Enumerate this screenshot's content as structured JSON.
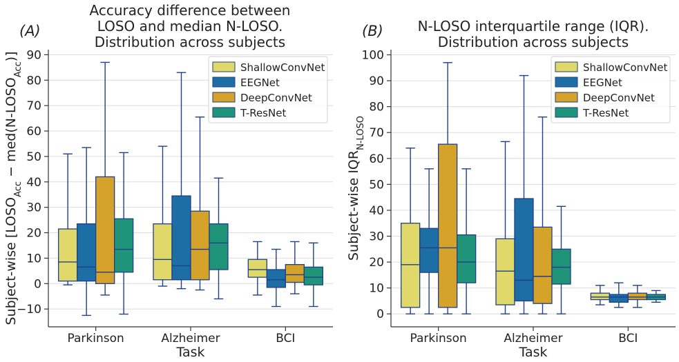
{
  "chart_data": [
    {
      "type": "box",
      "panel_label": "(A)",
      "title": [
        "Accuracy difference between",
        "LOSO and median N-LOSO.",
        "Distribution across subjects"
      ],
      "xlabel": "Task",
      "ylabel": {
        "parts": [
          {
            "t": "Subject-wise [LOSO"
          },
          {
            "t": "Acc",
            "sub": true
          },
          {
            "t": " − med(N-LOSO"
          },
          {
            "t": "Acc",
            "sub": true
          },
          {
            "t": ")]"
          }
        ]
      },
      "ylim": [
        -17,
        92
      ],
      "yticks": [
        -10,
        0,
        10,
        20,
        30,
        40,
        50,
        60,
        70,
        80,
        90
      ],
      "ytick_labels": [
        "−10",
        "0",
        "10",
        "20",
        "30",
        "40",
        "50",
        "60",
        "70",
        "80",
        "90"
      ],
      "categories": [
        "Parkinson",
        "Alzheimer",
        "BCI"
      ],
      "series": [
        {
          "name": "ShallowConvNet",
          "color": "#e0d96a",
          "boxes": [
            [
              -0.5,
              1,
              8.5,
              21.5,
              51
            ],
            [
              -1,
              1.5,
              9.5,
              23.5,
              54
            ],
            [
              -4.5,
              2.5,
              5.5,
              9.5,
              16.5
            ]
          ]
        },
        {
          "name": "EEGNet",
          "color": "#1c6ea4",
          "boxes": [
            [
              -12.5,
              1,
              6.5,
              23.5,
              53.5
            ],
            [
              -2,
              1.5,
              7,
              34.5,
              83
            ],
            [
              -9,
              -1.5,
              1.5,
              5.5,
              13.5
            ]
          ]
        },
        {
          "name": "DeepConvNet",
          "color": "#d5a22a",
          "boxes": [
            [
              -4.5,
              0,
              4.5,
              42,
              87
            ],
            [
              -2.5,
              1.5,
              13.5,
              28.5,
              65.5
            ],
            [
              -4,
              0.5,
              3.5,
              7.5,
              16.5
            ]
          ]
        },
        {
          "name": "T-ResNet",
          "color": "#1f9479",
          "boxes": [
            [
              -12,
              4.5,
              13.5,
              25.5,
              51.5
            ],
            [
              -6,
              5.5,
              16,
              23.5,
              41.5
            ],
            [
              -9,
              -0.5,
              2.5,
              6.5,
              16
            ]
          ]
        }
      ]
    },
    {
      "type": "box",
      "panel_label": "(B)",
      "title": [
        "N-LOSO interquartile range (IQR).",
        "Distribution across subjects"
      ],
      "xlabel": "Task",
      "ylabel": {
        "parts": [
          {
            "t": "Subject-wise IQR"
          },
          {
            "t": "N-LOSO",
            "sub": true
          }
        ]
      },
      "ylim": [
        -5,
        102
      ],
      "yticks": [
        0,
        10,
        20,
        30,
        40,
        50,
        60,
        70,
        80,
        90,
        100
      ],
      "ytick_labels": [
        "0",
        "10",
        "20",
        "30",
        "40",
        "50",
        "60",
        "70",
        "80",
        "90",
        "100"
      ],
      "categories": [
        "Parkinson",
        "Alzheimer",
        "BCI"
      ],
      "series": [
        {
          "name": "ShallowConvNet",
          "color": "#e0d96a",
          "boxes": [
            [
              0,
              2.5,
              19,
              35,
              64
            ],
            [
              0,
              3.5,
              16.5,
              29,
              66.5
            ],
            [
              3.5,
              5.5,
              6.5,
              8,
              11
            ]
          ]
        },
        {
          "name": "EEGNet",
          "color": "#1c6ea4",
          "boxes": [
            [
              0,
              16,
              25.5,
              33,
              56
            ],
            [
              0,
              5,
              13,
              44.5,
              92
            ],
            [
              2.5,
              4.5,
              6.5,
              7.5,
              12
            ]
          ]
        },
        {
          "name": "DeepConvNet",
          "color": "#d5a22a",
          "boxes": [
            [
              0,
              2.5,
              25.5,
              65.5,
              97
            ],
            [
              0,
              4,
              14.5,
              33.5,
              76
            ],
            [
              2.5,
              5.5,
              6.5,
              8,
              11
            ]
          ]
        },
        {
          "name": "T-ResNet",
          "color": "#1f9479",
          "boxes": [
            [
              0,
              12,
              20,
              30.5,
              56
            ],
            [
              0,
              11.5,
              18,
              25,
              41.5
            ],
            [
              4.5,
              5.5,
              6.5,
              7.5,
              9
            ]
          ]
        }
      ]
    }
  ]
}
